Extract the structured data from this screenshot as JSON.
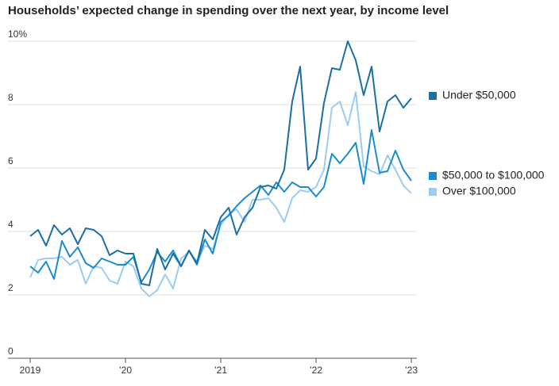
{
  "chart_data": {
    "type": "line",
    "title": "Households’ expected change in spending over the next year, by income level",
    "categories": [
      "2019",
      null,
      null,
      null,
      null,
      null,
      null,
      null,
      null,
      null,
      null,
      null,
      "’20",
      null,
      null,
      null,
      null,
      null,
      null,
      null,
      null,
      null,
      null,
      null,
      "’21",
      null,
      null,
      null,
      null,
      null,
      null,
      null,
      null,
      null,
      null,
      null,
      "’22",
      null,
      null,
      null,
      null,
      null,
      null,
      null,
      null,
      null,
      null,
      null,
      "’23"
    ],
    "series": [
      {
        "name": "Under $50,000",
        "color": "#1b6fa3",
        "values": [
          3.85,
          4.05,
          3.55,
          4.2,
          3.9,
          4.1,
          3.6,
          4.1,
          4.05,
          3.85,
          3.25,
          3.4,
          3.3,
          3.3,
          2.35,
          2.3,
          3.45,
          2.8,
          3.3,
          2.9,
          3.4,
          3.0,
          4.05,
          3.75,
          4.45,
          4.75,
          3.9,
          4.45,
          4.75,
          5.4,
          5.45,
          5.35,
          5.95,
          8.1,
          9.2,
          5.95,
          6.3,
          8.05,
          9.15,
          9.1,
          10.0,
          9.4,
          8.3,
          9.2,
          7.15,
          8.1,
          8.3,
          7.9,
          8.2
        ]
      },
      {
        "name": "$50,000 to $100,000",
        "color": "#1a8ccf",
        "values": [
          2.9,
          2.7,
          3.05,
          2.5,
          3.7,
          3.2,
          3.5,
          3.0,
          2.85,
          3.15,
          3.05,
          2.95,
          2.95,
          3.2,
          2.4,
          2.8,
          3.35,
          3.05,
          3.4,
          2.9,
          3.4,
          2.95,
          3.75,
          3.3,
          4.3,
          4.5,
          4.8,
          5.05,
          5.25,
          5.45,
          5.15,
          5.55,
          5.25,
          5.55,
          5.4,
          5.4,
          5.1,
          5.4,
          6.45,
          6.15,
          6.45,
          6.8,
          5.5,
          7.2,
          5.85,
          5.9,
          6.55,
          5.95,
          5.6
        ]
      },
      {
        "name": "Over $100,000",
        "color": "#9ccdee",
        "values": [
          2.55,
          3.1,
          3.15,
          3.15,
          3.2,
          2.95,
          3.1,
          2.35,
          2.9,
          2.85,
          2.45,
          2.35,
          3.05,
          2.9,
          2.2,
          1.95,
          2.15,
          2.65,
          2.2,
          3.15,
          3.35,
          3.05,
          3.55,
          3.45,
          4.2,
          4.55,
          4.7,
          4.3,
          5.0,
          5.0,
          5.05,
          4.75,
          4.3,
          5.05,
          5.3,
          5.25,
          5.4,
          5.95,
          7.9,
          8.1,
          7.35,
          8.4,
          6.05,
          5.9,
          5.8,
          6.4,
          5.95,
          5.45,
          5.2
        ]
      }
    ],
    "ylim": [
      0,
      10.4
    ],
    "yticks": [
      0,
      2,
      4,
      6,
      8,
      {
        "value": 10,
        "label": "10%"
      }
    ],
    "grid": true
  }
}
